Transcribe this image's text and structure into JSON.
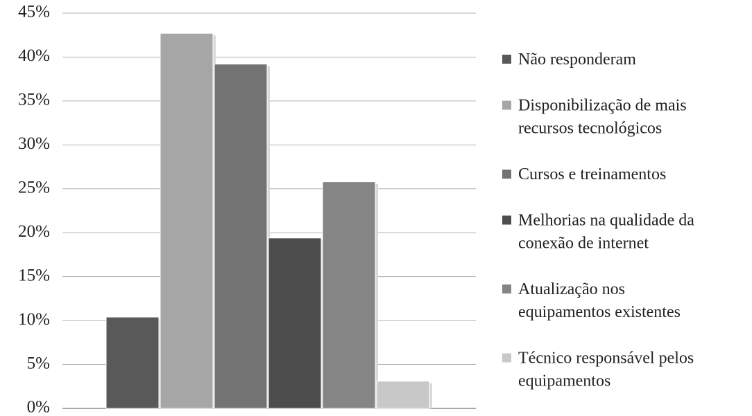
{
  "chart_data": {
    "type": "bar",
    "title": "",
    "xlabel": "",
    "ylabel": "",
    "ylim": [
      0,
      45
    ],
    "y_ticks": [
      "0%",
      "5%",
      "10%",
      "15%",
      "20%",
      "25%",
      "30%",
      "35%",
      "40%",
      "45%"
    ],
    "grid": true,
    "legend_position": "right",
    "series": [
      {
        "name": "Não responderam",
        "value": 10.4,
        "color": "#595959"
      },
      {
        "name": "Disponibilização de mais recursos tecnológicos",
        "value": 42.7,
        "color": "#a6a6a6"
      },
      {
        "name": "Cursos e treinamentos",
        "value": 39.2,
        "color": "#737373"
      },
      {
        "name": "Melhorias na qualidade da conexão de internet",
        "value": 19.4,
        "color": "#4d4d4d"
      },
      {
        "name": "Atualização nos equipamentos existentes",
        "value": 25.8,
        "color": "#858585"
      },
      {
        "name": "Técnico responsável pelos equipamentos",
        "value": 3.1,
        "color": "#c8c8c8"
      }
    ],
    "legend_lines": [
      [
        "Não responderam"
      ],
      [
        "Disponibilização de mais",
        "recursos tecnológicos"
      ],
      [
        "Cursos e treinamentos"
      ],
      [
        "Melhorias na qualidade da",
        "conexão de internet"
      ],
      [
        "Atualização nos",
        "equipamentos existentes"
      ],
      [
        "Técnico responsável pelos",
        "equipamentos"
      ]
    ]
  }
}
